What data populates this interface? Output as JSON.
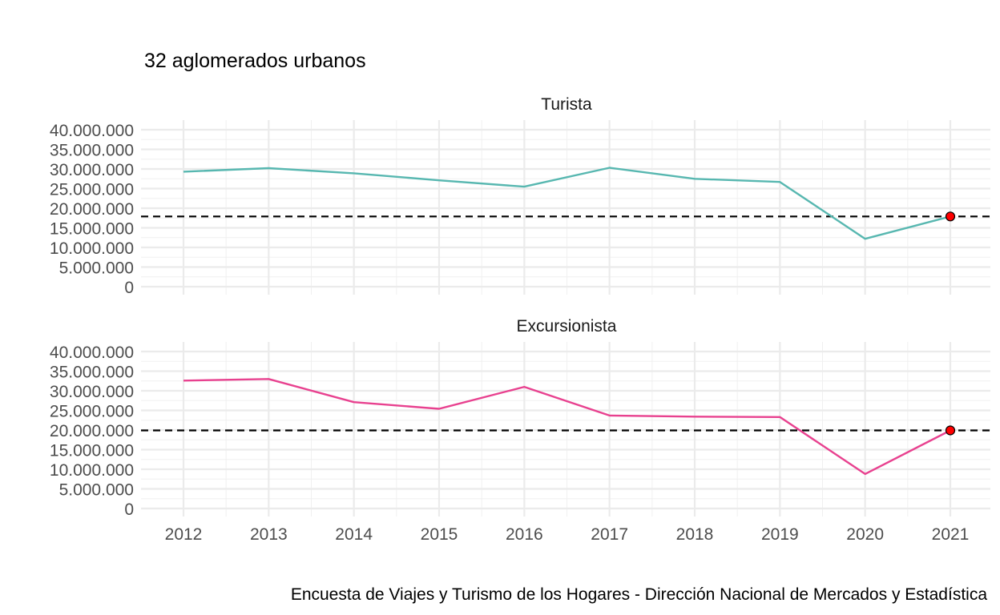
{
  "chart_data": {
    "type": "line",
    "title": "32 aglomerados urbanos",
    "caption": "Encuesta de Viajes y Turismo de los Hogares - Dirección Nacional de Mercados y Estadística",
    "x": [
      2012,
      2013,
      2014,
      2015,
      2016,
      2017,
      2018,
      2019,
      2020,
      2021
    ],
    "x_tick_labels": [
      "2012",
      "2013",
      "2014",
      "2015",
      "2016",
      "2017",
      "2018",
      "2019",
      "2020",
      "2021"
    ],
    "ylim": [
      0,
      40000000
    ],
    "y_ticks": [
      0,
      5000000,
      10000000,
      15000000,
      20000000,
      25000000,
      30000000,
      35000000,
      40000000
    ],
    "y_tick_labels": [
      "0",
      "5.000.000",
      "10.000.000",
      "15.000.000",
      "20.000.000",
      "25.000.000",
      "30.000.000",
      "35.000.000",
      "40.000.000"
    ],
    "grid": true,
    "legend": "none",
    "panels": [
      {
        "facet_label": "Turista",
        "color": "#57B7B0",
        "values": [
          29300000,
          30200000,
          28900000,
          27100000,
          25500000,
          30300000,
          27500000,
          26700000,
          12200000,
          17900000
        ],
        "reference_line": 17900000,
        "highlight_point": {
          "x": 2021,
          "y": 17900000,
          "color": "#FF0000"
        }
      },
      {
        "facet_label": "Excursionista",
        "color": "#E8418F",
        "values": [
          32600000,
          33000000,
          27100000,
          25400000,
          31000000,
          23700000,
          23400000,
          23300000,
          8800000,
          19900000
        ],
        "reference_line": 19900000,
        "highlight_point": {
          "x": 2021,
          "y": 19900000,
          "color": "#FF0000"
        }
      }
    ]
  }
}
